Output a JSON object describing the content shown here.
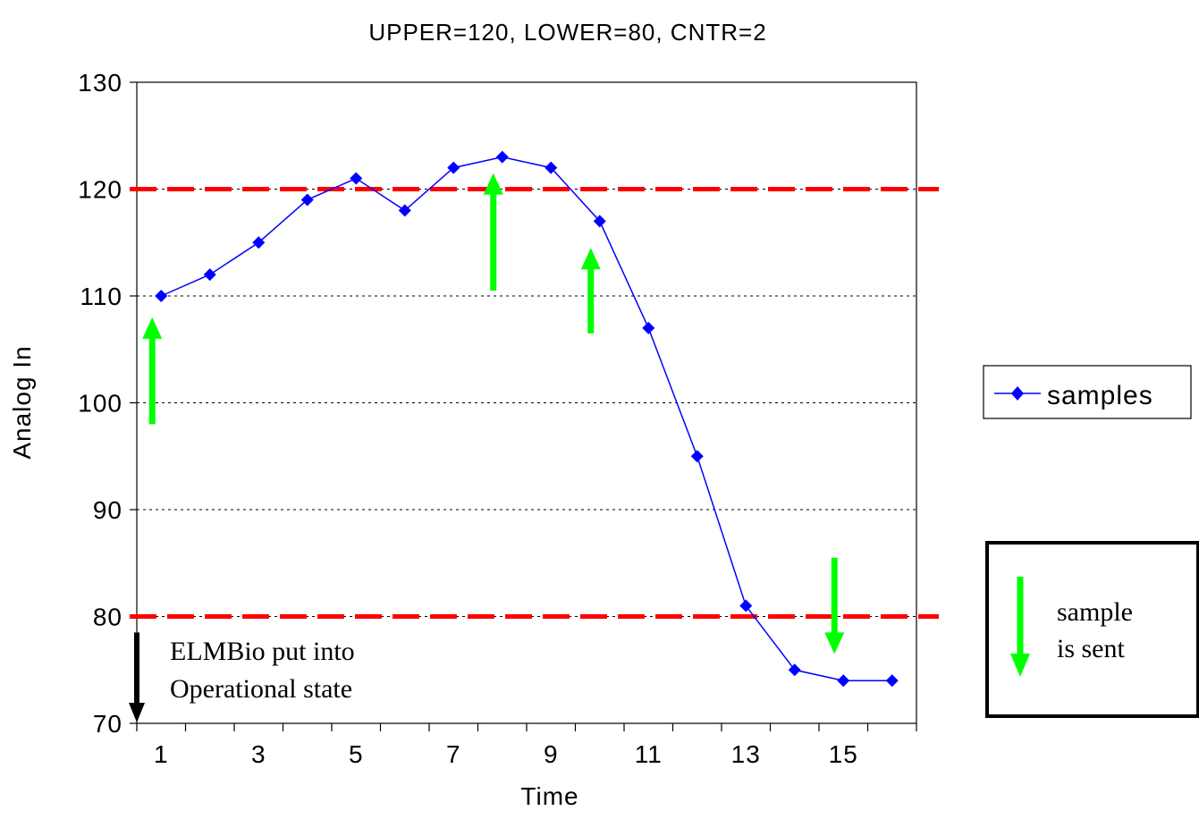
{
  "chart_data": {
    "type": "line",
    "title": "UPPER=120, LOWER=80, CNTR=2",
    "xlabel": "Time",
    "ylabel": "Analog In",
    "xlim": [
      0.5,
      16.5
    ],
    "ylim": [
      70,
      130
    ],
    "y_ticks": [
      70,
      80,
      90,
      100,
      110,
      120,
      130
    ],
    "x_tick_labels": [
      1,
      3,
      5,
      7,
      9,
      11,
      13,
      15
    ],
    "grid": "horizontal dotted",
    "series": [
      {
        "name": "samples",
        "color": "#0000ff",
        "marker": "diamond",
        "x": [
          1,
          2,
          3,
          4,
          5,
          6,
          7,
          8,
          9,
          10,
          11,
          12,
          13,
          14,
          15,
          16
        ],
        "values": [
          110,
          112,
          115,
          119,
          121,
          118,
          122,
          123,
          122,
          117,
          107,
          95,
          81,
          75,
          74,
          74
        ]
      }
    ],
    "thresholds": [
      {
        "value": 120,
        "color": "#ff0000"
      },
      {
        "value": 80,
        "color": "#ff0000"
      }
    ],
    "sent_arrows": [
      {
        "x": 1,
        "from": 98,
        "to": 108,
        "direction": "up"
      },
      {
        "x": 8,
        "from": 110.5,
        "to": 121.5,
        "direction": "up"
      },
      {
        "x": 10,
        "from": 106.5,
        "to": 114.5,
        "direction": "up"
      },
      {
        "x": 15,
        "from": 85.5,
        "to": 76.5,
        "direction": "down"
      }
    ],
    "annotation": {
      "line1": "ELMBio put into",
      "line2": "Operational state"
    },
    "legend": {
      "position": "right",
      "entry": "samples"
    },
    "key_box": {
      "line1": "sample",
      "line2": "is sent"
    },
    "colors": {
      "series": "#0000ff",
      "threshold": "#ff0000",
      "sent_arrow": "#00ff00",
      "start_arrow": "#000000"
    }
  }
}
